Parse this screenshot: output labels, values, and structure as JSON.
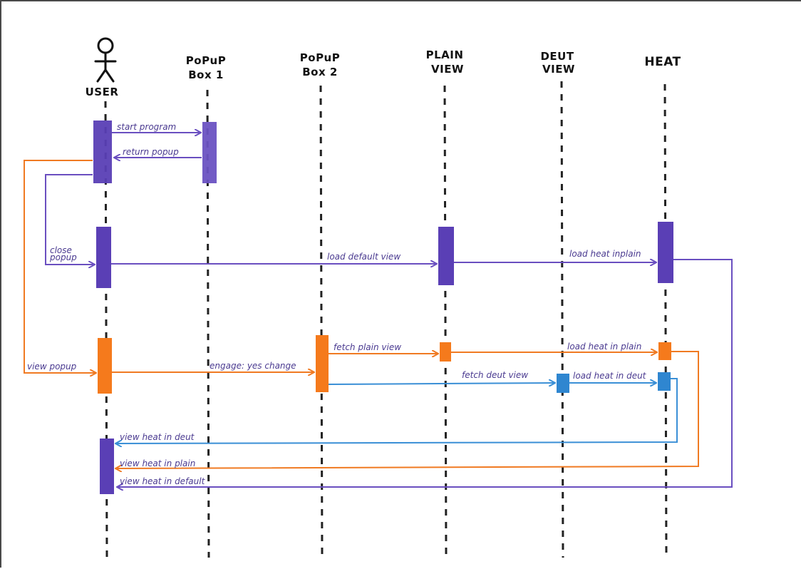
{
  "diagram": {
    "participants": [
      {
        "id": "user",
        "label": [
          "USER"
        ],
        "is_actor": true
      },
      {
        "id": "popup1",
        "label": [
          "PoPuP",
          "Box 1"
        ]
      },
      {
        "id": "popup2",
        "label": [
          "PoPuP",
          "Box 2"
        ]
      },
      {
        "id": "plain",
        "label": [
          "PLAIN",
          "VIEW"
        ]
      },
      {
        "id": "deut",
        "label": [
          "DEUT",
          "VIEW"
        ]
      },
      {
        "id": "heat",
        "label": [
          "HEAT"
        ]
      }
    ],
    "messages": [
      {
        "id": "start-program",
        "text": "start program",
        "color": "#6a4fc0"
      },
      {
        "id": "return-popup",
        "text": "return popup",
        "color": "#6a4fc0"
      },
      {
        "id": "close-popup",
        "text": "close popup",
        "lines": [
          "close",
          "popup"
        ],
        "color": "#6a4fc0"
      },
      {
        "id": "load-default-view",
        "text": "load default view",
        "color": "#6a4fc0"
      },
      {
        "id": "load-heat-inplain",
        "text": "load heat inplain",
        "color": "#6a4fc0"
      },
      {
        "id": "view-popup",
        "text": "view popup",
        "color": "#f07a22"
      },
      {
        "id": "engage-yes-change",
        "text": "engage: yes change",
        "color": "#f07a22"
      },
      {
        "id": "fetch-plain-view",
        "text": "fetch plain view",
        "color": "#f07a22"
      },
      {
        "id": "load-heat-in-plain",
        "text": "load heat in plain",
        "color": "#f07a22"
      },
      {
        "id": "fetch-deut-view",
        "text": "fetch deut view",
        "color": "#3a8fd6"
      },
      {
        "id": "load-heat-in-deut",
        "text": "load heat in deut",
        "color": "#3a8fd6"
      },
      {
        "id": "view-heat-in-deut",
        "text": "view heat in deut",
        "color": "#3a8fd6"
      },
      {
        "id": "view-heat-in-plain",
        "text": "view heat in plain",
        "color": "#f07a22"
      },
      {
        "id": "view-heat-in-default",
        "text": "view heat in default",
        "color": "#6a4fc0"
      }
    ],
    "colors": {
      "purple": "#5a3fb5",
      "orange": "#f57a1c",
      "blue": "#2f86d0",
      "lifeline": "#222222"
    }
  }
}
